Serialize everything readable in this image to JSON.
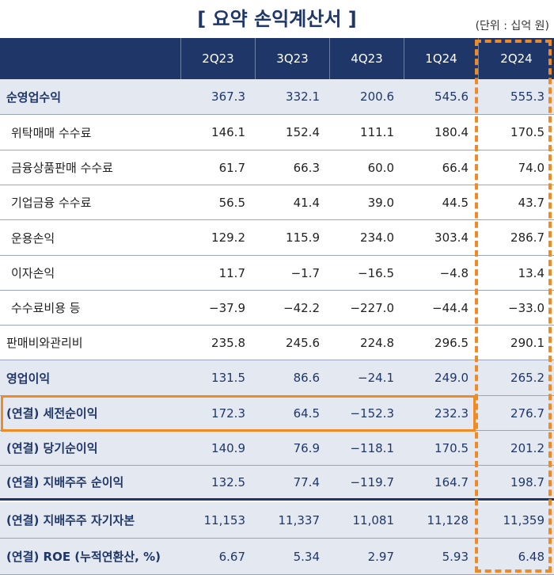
{
  "header": {
    "title": "[ 요약 손익계산서 ]",
    "unit": "(단위 : 십억 원)"
  },
  "table": {
    "columns": [
      "2Q23",
      "3Q23",
      "4Q23",
      "1Q24",
      "2Q24"
    ],
    "rows": [
      [
        "순영업수익",
        "367.3",
        "332.1",
        "200.6",
        "545.6",
        "555.3"
      ],
      [
        "위탁매매 수수료",
        "146.1",
        "152.4",
        "111.1",
        "180.4",
        "170.5"
      ],
      [
        "금융상품판매 수수료",
        "61.7",
        "66.3",
        "60.0",
        "66.4",
        "74.0"
      ],
      [
        "기업금융 수수료",
        "56.5",
        "41.4",
        "39.0",
        "44.5",
        "43.7"
      ],
      [
        "운용손익",
        "129.2",
        "115.9",
        "234.0",
        "303.4",
        "286.7"
      ],
      [
        "이자손익",
        "11.7",
        "−1.7",
        "−16.5",
        "−4.8",
        "13.4"
      ],
      [
        "수수료비용 등",
        "−37.9",
        "−42.2",
        "−227.0",
        "−44.4",
        "−33.0"
      ],
      [
        "판매비와관리비",
        "235.8",
        "245.6",
        "224.8",
        "296.5",
        "290.1"
      ],
      [
        "영업이익",
        "131.5",
        "86.6",
        "−24.1",
        "249.0",
        "265.2"
      ],
      [
        "(연결) 세전순이익",
        "172.3",
        "64.5",
        "−152.3",
        "232.3",
        "276.7"
      ],
      [
        "(연결) 당기순이익",
        "140.9",
        "76.9",
        "−118.1",
        "170.5",
        "201.2"
      ],
      [
        "(연결) 지배주주 순이익",
        "132.5",
        "77.4",
        "−119.7",
        "164.7",
        "198.7"
      ],
      [
        "(연결) 지배주주 자기자본",
        "11,153",
        "11,337",
        "11,081",
        "11,128",
        "11,359"
      ],
      [
        "(연결) ROE (누적연환산, %)",
        "6.67",
        "5.34",
        "2.97",
        "5.93",
        "6.48"
      ]
    ]
  }
}
